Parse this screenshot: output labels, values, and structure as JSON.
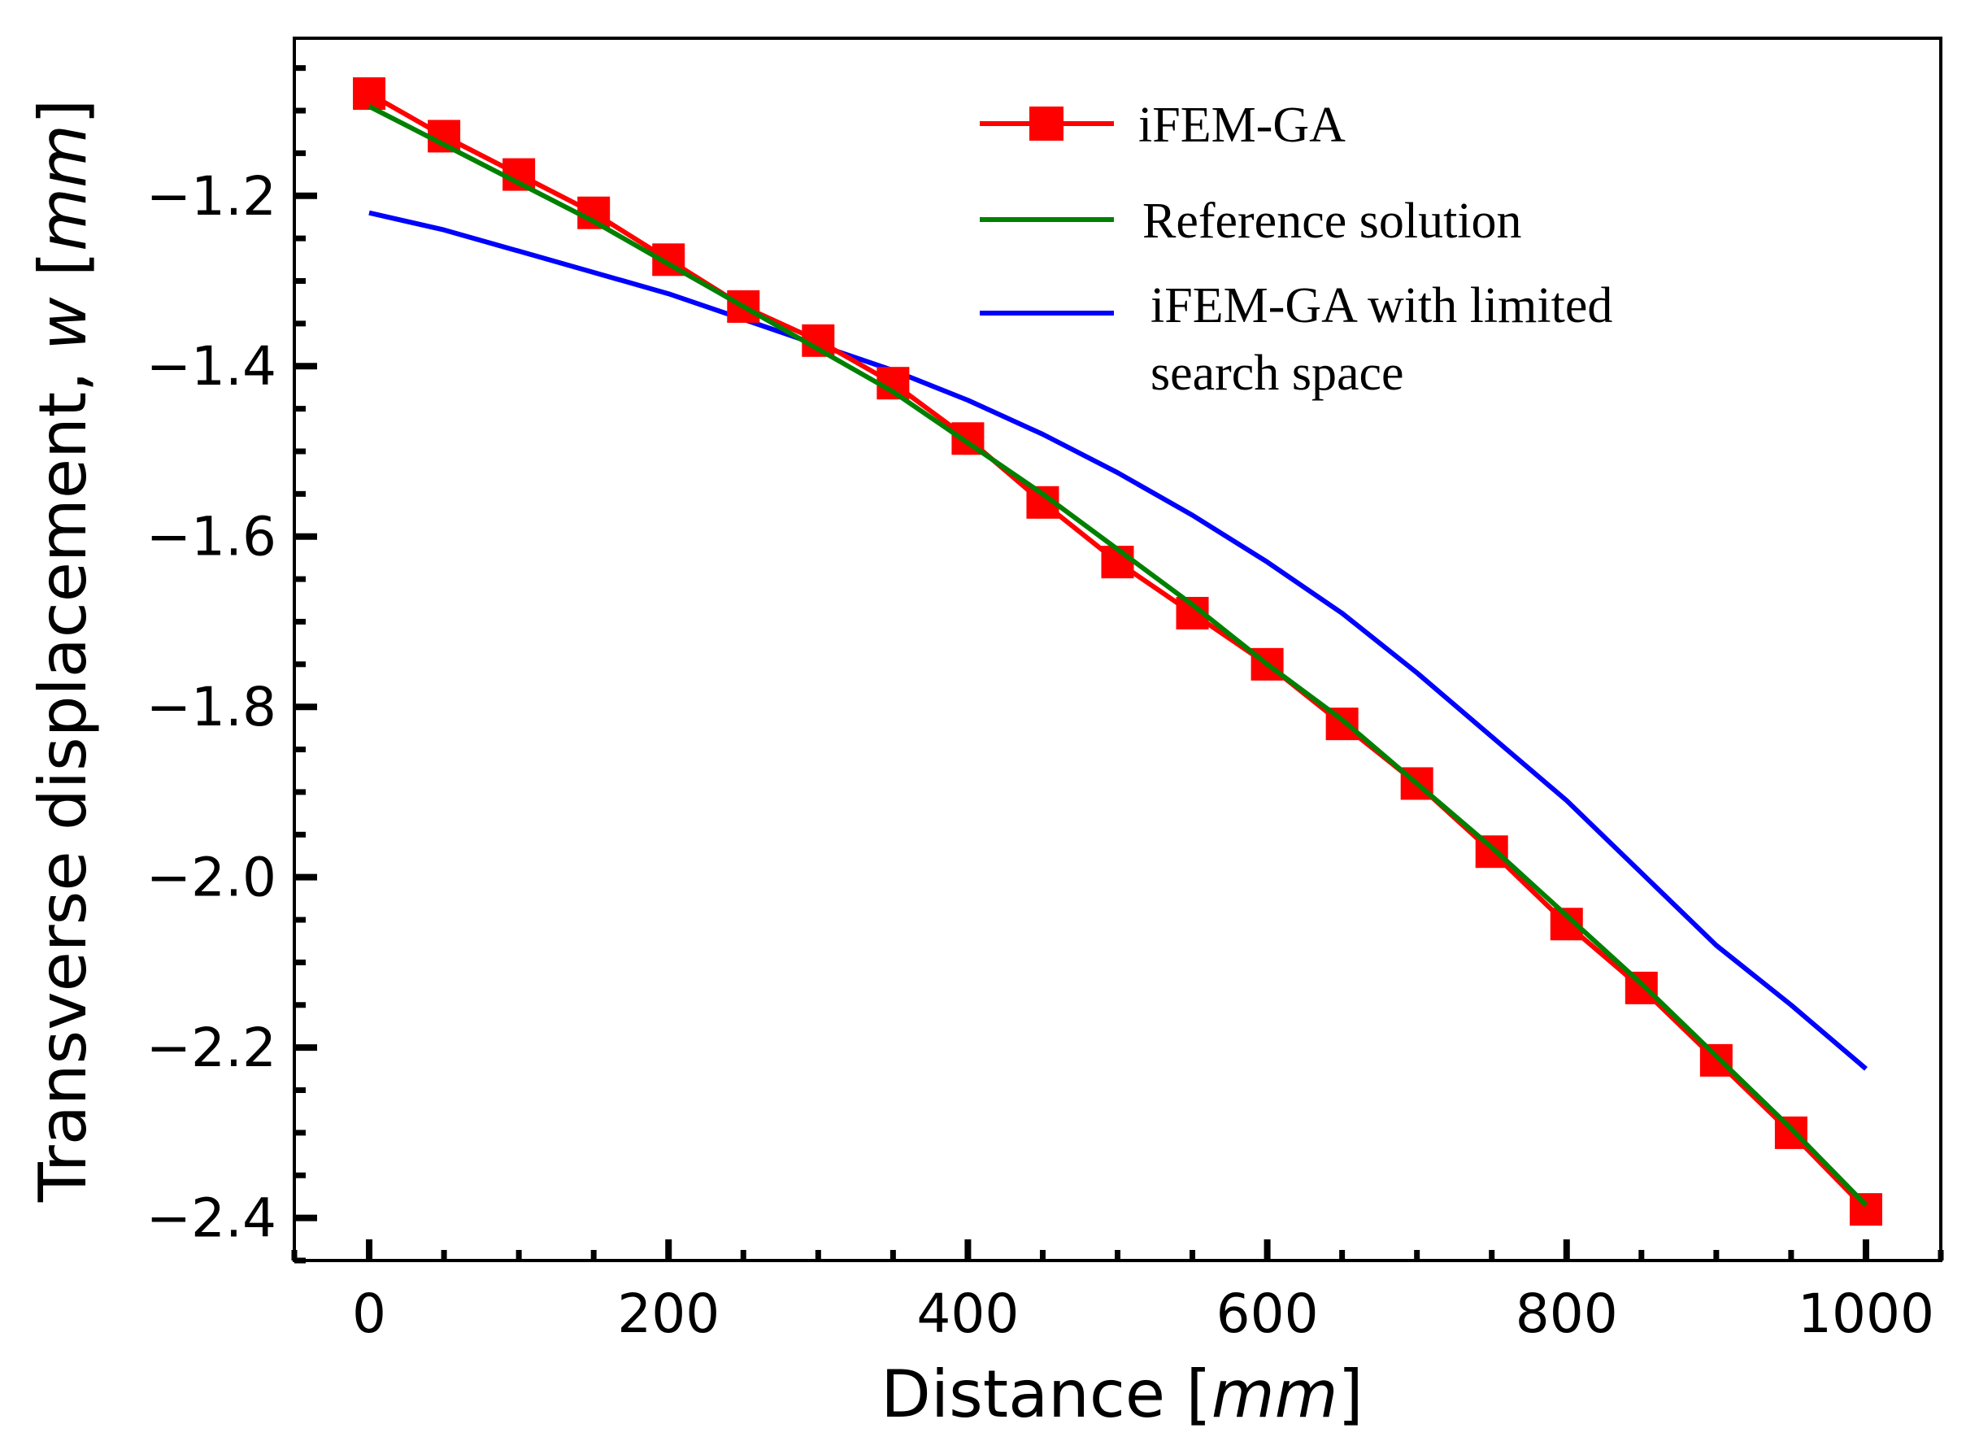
{
  "chart_data": {
    "type": "line",
    "xlabel": "Distance [mm]",
    "xlabel_parts": {
      "main": "Distance [",
      "italic": "mm",
      "close": "]"
    },
    "ylabel": "Transverse displacement, w [mm]",
    "ylabel_parts": {
      "main": "Transverse displacement, ",
      "var": "w",
      "open": " [",
      "italic": "mm",
      "close": "]"
    },
    "xlim": [
      -50,
      1050
    ],
    "ylim": [
      -2.45,
      -1.015
    ],
    "x_ticks": [
      0,
      200,
      400,
      600,
      800,
      1000
    ],
    "x_tick_labels": [
      "0",
      "200",
      "400",
      "600",
      "800",
      "1000"
    ],
    "y_ticks": [
      -1.2,
      -1.4,
      -1.6,
      -1.8,
      -2.0,
      -2.2,
      -2.4
    ],
    "y_tick_labels": [
      "−1.2",
      "−1.4",
      "−1.6",
      "−1.8",
      "−2.0",
      "−2.2",
      "−2.4"
    ],
    "x_minor_step": 50,
    "y_minor_step": 0.05,
    "grid": false,
    "legend_position": "top-right",
    "series": [
      {
        "name": "iFEM-GA",
        "color": "#ff0000",
        "marker": "square",
        "x": [
          0,
          50,
          100,
          150,
          200,
          250,
          300,
          350,
          400,
          450,
          500,
          550,
          600,
          650,
          700,
          750,
          800,
          850,
          900,
          950,
          1000
        ],
        "y": [
          -1.08,
          -1.13,
          -1.175,
          -1.22,
          -1.275,
          -1.33,
          -1.37,
          -1.42,
          -1.485,
          -1.56,
          -1.63,
          -1.69,
          -1.75,
          -1.82,
          -1.89,
          -1.97,
          -2.055,
          -2.13,
          -2.215,
          -2.3,
          -2.39
        ]
      },
      {
        "name": "Reference solution",
        "color": "#008000",
        "marker": "none",
        "x": [
          0,
          50,
          100,
          150,
          200,
          250,
          300,
          350,
          400,
          450,
          500,
          550,
          600,
          650,
          700,
          750,
          800,
          850,
          900,
          950,
          1000
        ],
        "y": [
          -1.095,
          -1.14,
          -1.185,
          -1.23,
          -1.28,
          -1.33,
          -1.38,
          -1.43,
          -1.49,
          -1.55,
          -1.615,
          -1.68,
          -1.75,
          -1.815,
          -1.89,
          -1.965,
          -2.045,
          -2.125,
          -2.21,
          -2.295,
          -2.385
        ]
      },
      {
        "name": "iFEM-GA with limited search space",
        "name_lines": [
          "iFEM-GA with limited",
          "search space"
        ],
        "color": "#0000ff",
        "marker": "none",
        "x": [
          0,
          50,
          100,
          150,
          200,
          250,
          300,
          350,
          400,
          450,
          500,
          550,
          600,
          650,
          700,
          750,
          800,
          850,
          900,
          950,
          1000
        ],
        "y": [
          -1.22,
          -1.24,
          -1.265,
          -1.29,
          -1.315,
          -1.345,
          -1.375,
          -1.405,
          -1.44,
          -1.48,
          -1.525,
          -1.575,
          -1.63,
          -1.69,
          -1.76,
          -1.835,
          -1.91,
          -1.995,
          -2.08,
          -2.15,
          -2.225
        ]
      }
    ]
  }
}
